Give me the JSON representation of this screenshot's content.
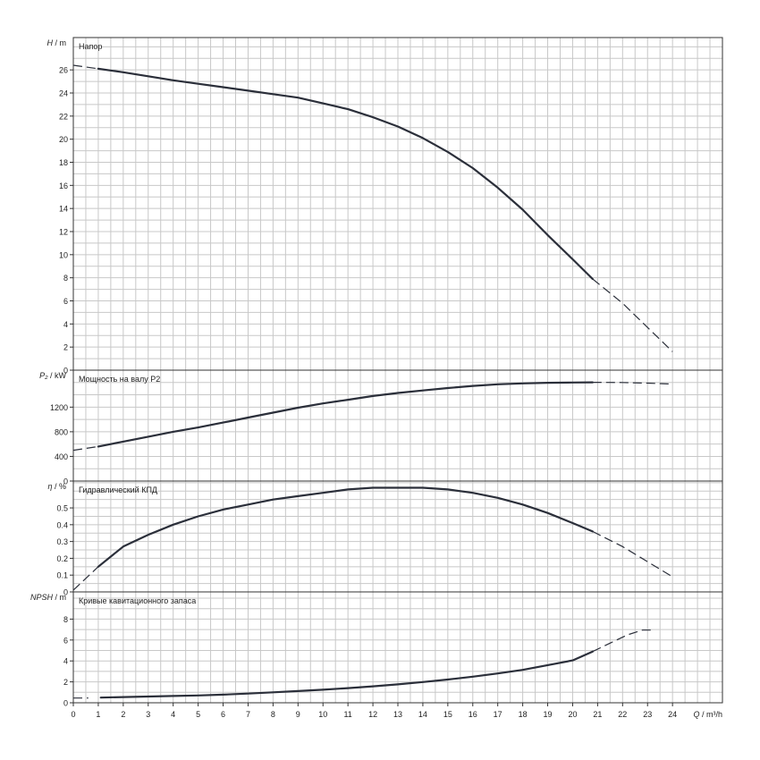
{
  "chart_data": {
    "type": "line",
    "x_axis": {
      "label_symbol": "Q",
      "label_unit": "/ m³/h",
      "min": 0,
      "max": 26,
      "ticks": [
        0,
        1,
        2,
        3,
        4,
        5,
        6,
        7,
        8,
        9,
        10,
        11,
        12,
        13,
        14,
        15,
        16,
        17,
        18,
        19,
        20,
        21,
        22,
        23,
        24
      ]
    },
    "panels": [
      {
        "id": "head",
        "axis_symbol": "H",
        "axis_unit": "/ m",
        "title": "Напор",
        "ylim": [
          0,
          28.8
        ],
        "yticks": [
          0,
          2,
          4,
          6,
          8,
          10,
          12,
          14,
          16,
          18,
          20,
          22,
          24,
          26
        ],
        "series": [
          {
            "solid": [
              [
                1,
                26.1
              ],
              [
                2,
                25.8
              ],
              [
                3,
                25.45
              ],
              [
                4,
                25.1
              ],
              [
                5,
                24.8
              ],
              [
                6,
                24.5
              ],
              [
                7,
                24.2
              ],
              [
                8,
                23.9
              ],
              [
                9,
                23.6
              ],
              [
                10,
                23.1
              ],
              [
                11,
                22.6
              ],
              [
                12,
                21.9
              ],
              [
                13,
                21.1
              ],
              [
                14,
                20.1
              ],
              [
                15,
                18.9
              ],
              [
                16,
                17.5
              ],
              [
                17,
                15.8
              ],
              [
                18,
                13.9
              ],
              [
                19,
                11.7
              ],
              [
                20,
                9.6
              ],
              [
                20.8,
                7.9
              ]
            ],
            "dashed": [
              [
                0,
                26.4
              ],
              [
                1,
                26.1
              ]
            ],
            "dashed_end": [
              [
                20.8,
                7.9
              ],
              [
                22,
                5.8
              ],
              [
                23,
                3.7
              ],
              [
                24,
                1.6
              ]
            ]
          }
        ]
      },
      {
        "id": "power",
        "axis_symbol": "P₂",
        "axis_unit": "/ kW",
        "title": "Мощность на валу P2",
        "ylim": [
          0,
          1800
        ],
        "yticks": [
          0,
          400,
          800,
          1200
        ],
        "series": [
          {
            "solid": [
              [
                1,
                560
              ],
              [
                2,
                640
              ],
              [
                3,
                720
              ],
              [
                4,
                800
              ],
              [
                5,
                870
              ],
              [
                6,
                950
              ],
              [
                7,
                1030
              ],
              [
                8,
                1110
              ],
              [
                9,
                1190
              ],
              [
                10,
                1260
              ],
              [
                11,
                1320
              ],
              [
                12,
                1380
              ],
              [
                13,
                1430
              ],
              [
                14,
                1470
              ],
              [
                15,
                1510
              ],
              [
                16,
                1545
              ],
              [
                17,
                1570
              ],
              [
                18,
                1585
              ],
              [
                19,
                1595
              ],
              [
                20,
                1600
              ],
              [
                20.8,
                1602
              ]
            ],
            "dashed": [
              [
                0,
                500
              ],
              [
                1,
                560
              ]
            ],
            "dashed_end": [
              [
                20.8,
                1602
              ],
              [
                22,
                1600
              ],
              [
                23,
                1590
              ],
              [
                24,
                1575
              ]
            ]
          }
        ]
      },
      {
        "id": "efficiency",
        "axis_symbol": "η",
        "axis_unit": "/ %",
        "title": "Гидравлический КПД",
        "ylim": [
          0,
          0.66
        ],
        "yticks": [
          0,
          0.1,
          0.2,
          0.3,
          0.4,
          0.5
        ],
        "ytick_labels": [
          "0",
          "0.1",
          "0.2",
          "0.3",
          "0.4",
          "0.5"
        ],
        "series": [
          {
            "solid": [
              [
                1,
                0.15
              ],
              [
                2,
                0.27
              ],
              [
                3,
                0.34
              ],
              [
                4,
                0.4
              ],
              [
                5,
                0.45
              ],
              [
                6,
                0.49
              ],
              [
                7,
                0.52
              ],
              [
                8,
                0.55
              ],
              [
                9,
                0.57
              ],
              [
                10,
                0.59
              ],
              [
                11,
                0.61
              ],
              [
                12,
                0.62
              ],
              [
                13,
                0.62
              ],
              [
                14,
                0.62
              ],
              [
                15,
                0.61
              ],
              [
                16,
                0.59
              ],
              [
                17,
                0.56
              ],
              [
                18,
                0.52
              ],
              [
                19,
                0.47
              ],
              [
                20,
                0.41
              ],
              [
                20.8,
                0.36
              ]
            ],
            "dashed": [
              [
                0,
                0.01
              ],
              [
                1,
                0.15
              ]
            ],
            "dashed_end": [
              [
                20.8,
                0.36
              ],
              [
                22,
                0.27
              ],
              [
                23,
                0.18
              ],
              [
                24,
                0.09
              ]
            ]
          }
        ]
      },
      {
        "id": "npsh",
        "axis_symbol": "NPSH",
        "axis_unit": "/ m",
        "title": "Кривые кавитационного запаса",
        "ylim": [
          0,
          10.6
        ],
        "yticks": [
          0,
          2,
          4,
          6,
          8
        ],
        "series": [
          {
            "solid": [
              [
                1.1,
                0.5
              ],
              [
                2,
                0.55
              ],
              [
                3,
                0.6
              ],
              [
                4,
                0.65
              ],
              [
                5,
                0.7
              ],
              [
                6,
                0.78
              ],
              [
                7,
                0.88
              ],
              [
                8,
                1.0
              ],
              [
                9,
                1.12
              ],
              [
                10,
                1.25
              ],
              [
                11,
                1.4
              ],
              [
                12,
                1.57
              ],
              [
                13,
                1.76
              ],
              [
                14,
                1.98
              ],
              [
                15,
                2.22
              ],
              [
                16,
                2.5
              ],
              [
                17,
                2.8
              ],
              [
                18,
                3.15
              ],
              [
                19,
                3.6
              ],
              [
                20,
                4.05
              ],
              [
                20.8,
                4.9
              ]
            ],
            "dashed": [
              [
                0,
                0.45
              ],
              [
                0.6,
                0.45
              ]
            ],
            "dashed_end": [
              [
                20.8,
                4.9
              ],
              [
                21.5,
                5.7
              ],
              [
                22.2,
                6.5
              ],
              [
                22.8,
                6.95
              ],
              [
                23.3,
                6.95
              ]
            ]
          }
        ]
      }
    ]
  }
}
